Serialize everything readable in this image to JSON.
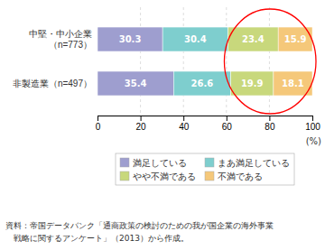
{
  "chart_data": {
    "type": "bar",
    "orientation": "horizontal",
    "stacked": true,
    "data_labels": true,
    "grid": true,
    "legend": "bottom",
    "categories": [
      "中堅・中小企業\n（n=773）",
      "非製造業（n=497）"
    ],
    "series": [
      {
        "name": "満足している",
        "color": "#9e9ecf",
        "values": [
          30.3,
          35.4
        ]
      },
      {
        "name": "まあ満足している",
        "color": "#7ecece",
        "values": [
          30.4,
          26.6
        ]
      },
      {
        "name": "やや不満である",
        "color": "#c8d87c",
        "values": [
          23.4,
          19.9
        ]
      },
      {
        "name": "不満である",
        "color": "#f5c87a",
        "values": [
          15.9,
          18.1
        ]
      }
    ],
    "xlim": [
      0,
      100
    ],
    "xticks": [
      0,
      20,
      40,
      60,
      80,
      100
    ],
    "xlabel": "(%)",
    "annotations": [
      "資料：帝国データバンク「通商政策の検討のための我が国企業の海外事業",
      "　戦略に関するアンケート」（2013）から作成。"
    ]
  }
}
